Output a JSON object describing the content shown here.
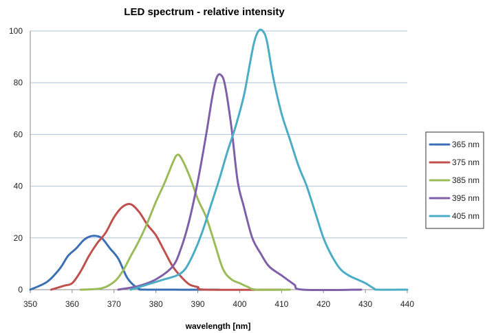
{
  "chart_data": {
    "type": "line",
    "title": "LED spectrum - relative intensity",
    "xlabel": "wavelength [nm]",
    "ylabel": "",
    "xlim": [
      350,
      440
    ],
    "ylim": [
      0,
      100
    ],
    "x_ticks": [
      350,
      360,
      370,
      380,
      390,
      400,
      410,
      420,
      430,
      440
    ],
    "y_ticks": [
      0,
      20,
      40,
      60,
      80,
      100
    ],
    "grid": "horizontal",
    "legend_position": "right",
    "series": [
      {
        "name": "365 nm",
        "color": "#3a6fb6",
        "points": [
          [
            350,
            0
          ],
          [
            354,
            3
          ],
          [
            357,
            8
          ],
          [
            359,
            13
          ],
          [
            361,
            16
          ],
          [
            363,
            19.5
          ],
          [
            365,
            20.8
          ],
          [
            367,
            20
          ],
          [
            369,
            16
          ],
          [
            371,
            12
          ],
          [
            373,
            5
          ],
          [
            374.5,
            2
          ],
          [
            376,
            0.3
          ],
          [
            378,
            0
          ],
          [
            395,
            0
          ]
        ]
      },
      {
        "name": "375 nm",
        "color": "#c0504d",
        "points": [
          [
            355,
            0
          ],
          [
            358,
            1.5
          ],
          [
            360,
            2.5
          ],
          [
            362,
            7
          ],
          [
            364,
            13
          ],
          [
            366,
            18
          ],
          [
            368,
            22
          ],
          [
            370,
            28
          ],
          [
            372,
            32
          ],
          [
            374,
            33
          ],
          [
            376,
            30
          ],
          [
            378,
            25
          ],
          [
            380,
            21
          ],
          [
            382,
            15
          ],
          [
            384,
            9
          ],
          [
            386,
            5
          ],
          [
            388,
            2
          ],
          [
            390,
            1
          ],
          [
            392,
            0
          ],
          [
            410,
            0
          ]
        ]
      },
      {
        "name": "385 nm",
        "color": "#9bbb59",
        "points": [
          [
            362,
            0
          ],
          [
            367,
            0.5
          ],
          [
            370,
            3
          ],
          [
            372,
            7
          ],
          [
            374,
            13
          ],
          [
            376,
            19
          ],
          [
            378,
            26
          ],
          [
            380,
            34
          ],
          [
            382,
            41
          ],
          [
            384,
            49
          ],
          [
            385,
            52
          ],
          [
            386,
            51
          ],
          [
            388,
            44
          ],
          [
            390,
            35
          ],
          [
            392,
            28
          ],
          [
            394,
            18
          ],
          [
            396,
            8
          ],
          [
            398,
            4
          ],
          [
            400,
            2.5
          ],
          [
            402,
            1
          ],
          [
            404,
            0
          ],
          [
            412,
            0
          ]
        ]
      },
      {
        "name": "395 nm",
        "color": "#7f5fa8",
        "points": [
          [
            371,
            0
          ],
          [
            376,
            1.5
          ],
          [
            380,
            4
          ],
          [
            384,
            9
          ],
          [
            386,
            16
          ],
          [
            388,
            27
          ],
          [
            390,
            42
          ],
          [
            392,
            60
          ],
          [
            393.5,
            75
          ],
          [
            394.5,
            82
          ],
          [
            395.5,
            83
          ],
          [
            396.5,
            79
          ],
          [
            398,
            63
          ],
          [
            399.5,
            42
          ],
          [
            401,
            32
          ],
          [
            403,
            20
          ],
          [
            405,
            14
          ],
          [
            407,
            9
          ],
          [
            410,
            5.5
          ],
          [
            413,
            2
          ],
          [
            415,
            0
          ],
          [
            429,
            0
          ]
        ]
      },
      {
        "name": "405 nm",
        "color": "#4bacc6",
        "points": [
          [
            374,
            0
          ],
          [
            378,
            2
          ],
          [
            382,
            4
          ],
          [
            385,
            5.5
          ],
          [
            387,
            8
          ],
          [
            389,
            14
          ],
          [
            391,
            22
          ],
          [
            393,
            32
          ],
          [
            395,
            42
          ],
          [
            397,
            53
          ],
          [
            399,
            63
          ],
          [
            401,
            75
          ],
          [
            402.5,
            88
          ],
          [
            403.5,
            96
          ],
          [
            404.5,
            100
          ],
          [
            405.5,
            100
          ],
          [
            406.5,
            96
          ],
          [
            408,
            82
          ],
          [
            410,
            68
          ],
          [
            412,
            58
          ],
          [
            414,
            48
          ],
          [
            416,
            40
          ],
          [
            418,
            30
          ],
          [
            420,
            20
          ],
          [
            422,
            13
          ],
          [
            424,
            8
          ],
          [
            426,
            5.5
          ],
          [
            428,
            4
          ],
          [
            430,
            2.5
          ],
          [
            432,
            0.5
          ],
          [
            433,
            0
          ],
          [
            440,
            0
          ]
        ]
      }
    ]
  }
}
